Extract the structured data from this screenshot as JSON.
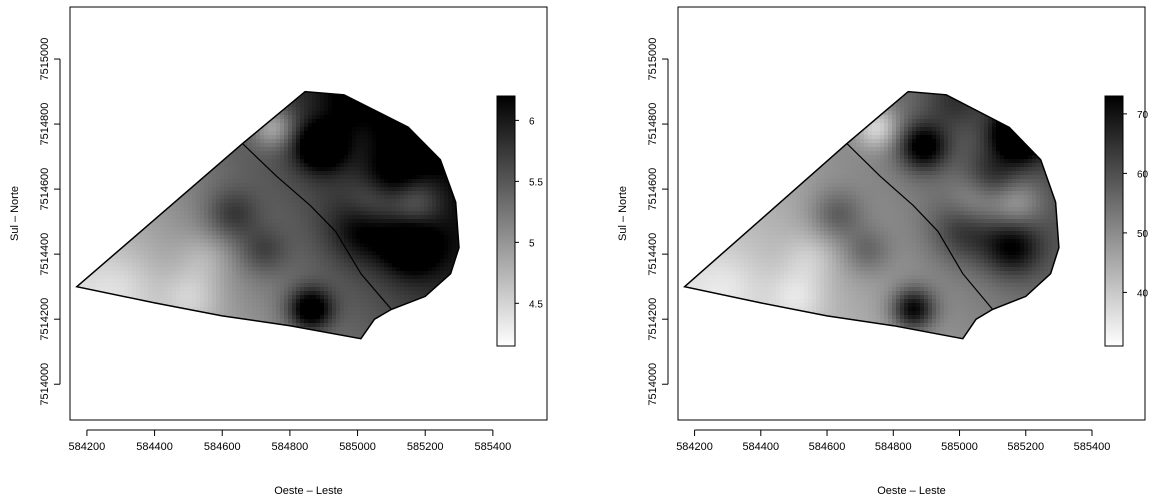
{
  "chart_data": [
    {
      "type": "heatmap",
      "xlabel": "Oeste – Leste",
      "ylabel": "Sul – Norte",
      "xlim": [
        584150,
        585560
      ],
      "ylim": [
        7513890,
        7515160
      ],
      "x_ticks": [
        584200,
        584400,
        584600,
        584800,
        585000,
        585200,
        585400
      ],
      "y_ticks": [
        7514000,
        7514200,
        7514400,
        7514600,
        7514800,
        7515000
      ],
      "colorbar": {
        "min": 4.15,
        "max": 6.2,
        "ticks": [
          4.5,
          5,
          5.5,
          6
        ],
        "tick_labels": [
          "4.5",
          "5",
          "5.5",
          "6"
        ]
      },
      "field": {
        "base": 4.45,
        "gx": 0.0013,
        "gy": 0.0009,
        "scale": 1.0,
        "spots": [
          [
            585180,
            7514770,
            1.55,
            55
          ],
          [
            584890,
            7514730,
            1.1,
            50
          ],
          [
            585020,
            7514480,
            0.65,
            70
          ],
          [
            585160,
            7514420,
            0.85,
            60
          ],
          [
            585100,
            7514630,
            0.55,
            60
          ],
          [
            584860,
            7514230,
            1.2,
            45
          ],
          [
            584630,
            7514520,
            0.5,
            55
          ],
          [
            584720,
            7514410,
            0.4,
            50
          ],
          [
            584980,
            7514870,
            0.35,
            60
          ],
          [
            584750,
            7514790,
            -0.75,
            45
          ],
          [
            585050,
            7514560,
            -0.6,
            60
          ],
          [
            585170,
            7514560,
            -0.55,
            55
          ],
          [
            584510,
            7514270,
            -0.35,
            60
          ],
          [
            584550,
            7514390,
            -0.25,
            55
          ],
          [
            584300,
            7514300,
            -0.2,
            70
          ]
        ]
      },
      "boundary": [
        [
          584170,
          7514300
        ],
        [
          584660,
          7514740
        ],
        [
          584845,
          7514900
        ],
        [
          584960,
          7514890
        ],
        [
          585150,
          7514790
        ],
        [
          585245,
          7514690
        ],
        [
          585290,
          7514560
        ],
        [
          585300,
          7514420
        ],
        [
          585275,
          7514340
        ],
        [
          585200,
          7514270
        ],
        [
          585100,
          7514230
        ],
        [
          585050,
          7514200
        ],
        [
          585010,
          7514140
        ],
        [
          584800,
          7514180
        ],
        [
          584600,
          7514210
        ],
        [
          584400,
          7514250
        ]
      ],
      "divider": [
        [
          584660,
          7514740
        ],
        [
          584760,
          7514640
        ],
        [
          584860,
          7514550
        ],
        [
          584935,
          7514470
        ],
        [
          585010,
          7514340
        ],
        [
          585100,
          7514230
        ]
      ]
    },
    {
      "type": "heatmap",
      "xlabel": "Oeste – Leste",
      "ylabel": "Sul – Norte",
      "xlim": [
        584150,
        585560
      ],
      "ylim": [
        7513890,
        7515160
      ],
      "x_ticks": [
        584200,
        584400,
        584600,
        584800,
        585000,
        585200,
        585400
      ],
      "y_ticks": [
        7514000,
        7514200,
        7514400,
        7514600,
        7514800,
        7515000
      ],
      "colorbar": {
        "min": 31,
        "max": 73,
        "ticks": [
          40,
          50,
          60,
          70
        ],
        "tick_labels": [
          "40",
          "50",
          "60",
          "70"
        ]
      },
      "field": {
        "base": 36.5,
        "gx": 0.018,
        "gy": 0.012,
        "scale": 20.0,
        "spots": [
          [
            585180,
            7514770,
            1.55,
            55
          ],
          [
            584890,
            7514730,
            1.1,
            50
          ],
          [
            585020,
            7514480,
            0.65,
            70
          ],
          [
            585160,
            7514420,
            0.85,
            60
          ],
          [
            585100,
            7514630,
            0.55,
            60
          ],
          [
            584860,
            7514230,
            1.2,
            45
          ],
          [
            584630,
            7514520,
            0.5,
            55
          ],
          [
            584720,
            7514410,
            0.4,
            50
          ],
          [
            584980,
            7514870,
            0.35,
            60
          ],
          [
            584750,
            7514790,
            -0.75,
            45
          ],
          [
            585050,
            7514560,
            -0.6,
            60
          ],
          [
            585170,
            7514560,
            -0.55,
            55
          ],
          [
            584510,
            7514270,
            -0.35,
            60
          ],
          [
            584550,
            7514390,
            -0.25,
            55
          ],
          [
            584300,
            7514300,
            -0.2,
            70
          ]
        ]
      },
      "boundary": [
        [
          584170,
          7514300
        ],
        [
          584660,
          7514740
        ],
        [
          584845,
          7514900
        ],
        [
          584960,
          7514890
        ],
        [
          585150,
          7514790
        ],
        [
          585245,
          7514690
        ],
        [
          585290,
          7514560
        ],
        [
          585300,
          7514420
        ],
        [
          585275,
          7514340
        ],
        [
          585200,
          7514270
        ],
        [
          585100,
          7514230
        ],
        [
          585050,
          7514200
        ],
        [
          585010,
          7514140
        ],
        [
          584800,
          7514180
        ],
        [
          584600,
          7514210
        ],
        [
          584400,
          7514250
        ]
      ],
      "divider": [
        [
          584660,
          7514740
        ],
        [
          584760,
          7514640
        ],
        [
          584860,
          7514550
        ],
        [
          584935,
          7514470
        ],
        [
          585010,
          7514340
        ],
        [
          585100,
          7514230
        ]
      ]
    }
  ]
}
